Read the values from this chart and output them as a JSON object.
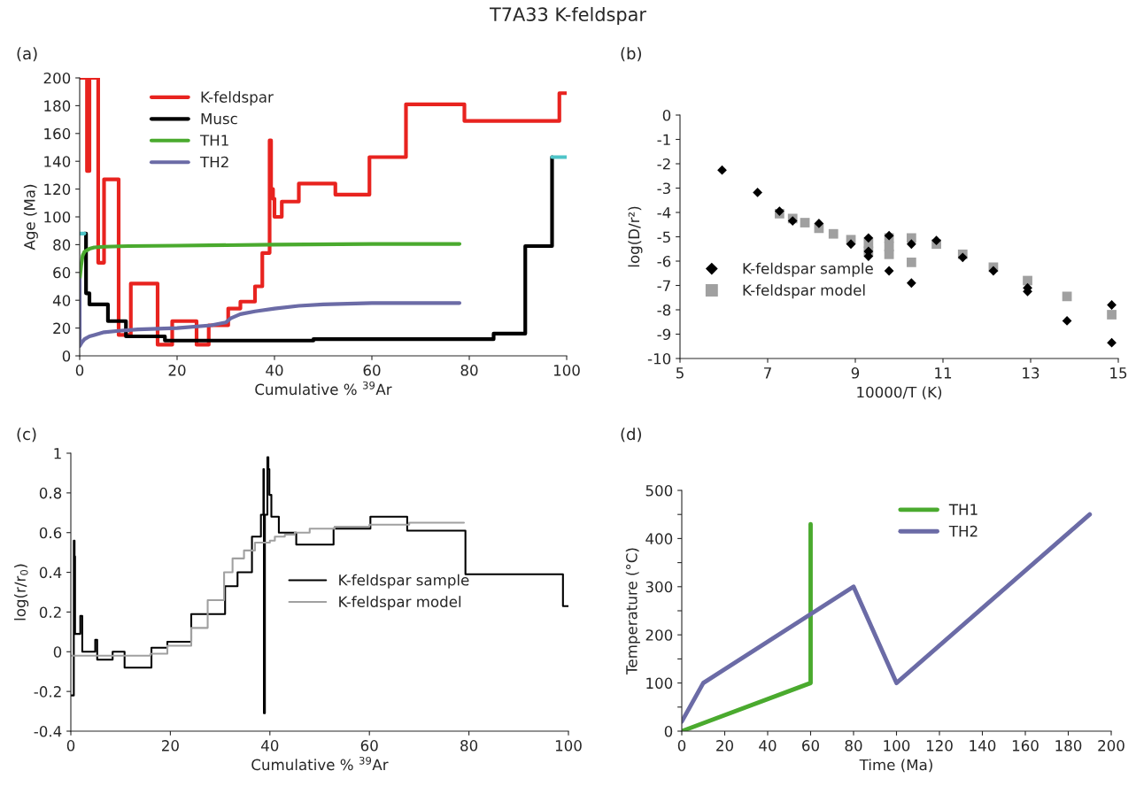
{
  "chart_data": [
    {
      "type": "step",
      "title": "T7A33 K-feldspar",
      "annotations": [
        "(a)"
      ],
      "xlabel": "Cumulative % $^{39}$Ar",
      "ylabel": "Age (Ma)",
      "xlim": [
        0,
        100
      ],
      "xticks": [
        0,
        20,
        40,
        60,
        80,
        100
      ],
      "ylim": [
        0,
        200
      ],
      "yticks": [
        0,
        20,
        40,
        60,
        80,
        100,
        120,
        140,
        160,
        180,
        200
      ],
      "legend": "top left",
      "grid": false,
      "series": [
        {
          "name": "K-feldspar",
          "color": "#e8231f",
          "x": [
            0,
            1.5,
            2.0,
            3.8,
            5.0,
            8.0,
            10.5,
            16,
            19,
            24,
            26.5,
            30.5,
            33,
            36,
            37.5,
            39,
            39.3,
            39.7,
            40,
            41.5,
            45,
            52.5,
            59.5,
            67,
            79,
            98.5,
            100
          ],
          "values": [
            200,
            133,
            200,
            67,
            127,
            15,
            52,
            8,
            25,
            8,
            22,
            34,
            39,
            50,
            74,
            155,
            120,
            113,
            100,
            111,
            124,
            116,
            143,
            181,
            169,
            189,
            189
          ]
        },
        {
          "name": "Musc",
          "color": "#000000",
          "x": [
            1.0,
            1.3,
            2.0,
            5.8,
            9.5,
            17.5,
            48,
            85,
            91.5,
            97
          ],
          "values": [
            88,
            45,
            37,
            25,
            14,
            11,
            12,
            16,
            79,
            143
          ]
        },
        {
          "name": "TH1",
          "color": "#4aaa2e",
          "type": "line",
          "x": [
            0,
            0.3,
            0.6,
            1,
            2,
            3,
            5,
            10,
            20,
            40,
            60,
            78
          ],
          "values": [
            55,
            65,
            72,
            75,
            77,
            78,
            78.5,
            79,
            79.3,
            80,
            80.5,
            80.5
          ]
        },
        {
          "name": "TH2",
          "color": "#6b6ba6",
          "type": "line",
          "x": [
            0,
            0,
            0.5,
            1,
            2,
            3,
            5,
            8,
            12,
            20,
            27,
            30,
            31,
            33,
            36,
            40,
            45,
            50,
            60,
            78
          ],
          "values": [
            55,
            7,
            10,
            12,
            14,
            15,
            17,
            18,
            19,
            20,
            22,
            24,
            27,
            30,
            32,
            34,
            36,
            37,
            38,
            38
          ]
        },
        {
          "color": "#4ec4c8",
          "type": "line",
          "x": [
            0,
            1
          ],
          "values": [
            88,
            88
          ]
        },
        {
          "color": "#4ec4c8",
          "type": "line",
          "x": [
            97,
            100
          ],
          "values": [
            143,
            143
          ]
        }
      ]
    },
    {
      "type": "scatter",
      "annotations": [
        "(b)"
      ],
      "xlabel": "10000/T (K)",
      "ylabel": "log(D/r²)",
      "xlim": [
        5,
        15
      ],
      "xticks": [
        5,
        7,
        9,
        11,
        13,
        15
      ],
      "ylim": [
        -10,
        0
      ],
      "yticks": [
        -10,
        -9,
        -8,
        -7,
        -6,
        -5,
        -4,
        -3,
        -2,
        -1,
        0
      ],
      "legend": "left",
      "grid": false,
      "series": [
        {
          "name": "K-feldspar sample",
          "color": "#000000",
          "marker": "diamond",
          "x": [
            5.96,
            6.77,
            7.27,
            7.57,
            8.17,
            8.9,
            9.3,
            9.3,
            9.3,
            9.77,
            9.77,
            10.28,
            10.28,
            10.85,
            11.45,
            12.15,
            12.93,
            12.93,
            13.83,
            14.85,
            14.85
          ],
          "values": [
            -2.26,
            -3.18,
            -3.95,
            -4.35,
            -4.45,
            -5.3,
            -5.05,
            -5.6,
            -5.8,
            -4.95,
            -6.4,
            -5.3,
            -6.9,
            -5.15,
            -5.85,
            -6.4,
            -7.1,
            -7.25,
            -8.45,
            -7.8,
            -9.35
          ]
        },
        {
          "name": "K-feldspar model",
          "color": "#a0a0a0",
          "marker": "square",
          "x": [
            7.27,
            7.57,
            7.85,
            8.17,
            8.5,
            8.9,
            9.3,
            9.3,
            9.77,
            9.77,
            9.77,
            10.28,
            10.28,
            10.85,
            11.45,
            12.15,
            12.93,
            13.83,
            14.85
          ],
          "values": [
            -4.05,
            -4.25,
            -4.42,
            -4.65,
            -4.88,
            -5.12,
            -5.25,
            -5.6,
            -5.05,
            -5.4,
            -5.72,
            -5.05,
            -6.05,
            -5.3,
            -5.72,
            -6.25,
            -6.8,
            -7.45,
            -8.2
          ]
        }
      ]
    },
    {
      "type": "step",
      "annotations": [
        "(c)"
      ],
      "xlabel": "Cumulative % $^{39}$Ar",
      "ylabel": "log(r/r$_{0}$)",
      "xlim": [
        0,
        100
      ],
      "xticks": [
        0,
        20,
        40,
        60,
        80,
        100
      ],
      "ylim": [
        -0.4,
        1
      ],
      "yticks": [
        -0.4,
        -0.2,
        0,
        0.2,
        0.4,
        0.6,
        0.8,
        1
      ],
      "legend": "right",
      "grid": false,
      "series": [
        {
          "name": "K-feldspar sample",
          "color": "#000000",
          "x": [
            0,
            0.6,
            0.75,
            0.85,
            1.9,
            2.3,
            4.9,
            5.3,
            8.4,
            10.8,
            16.2,
            19.4,
            24.2,
            31,
            33.5,
            36.4,
            38.2,
            38.7,
            38.8,
            39.0,
            39.5,
            39.7,
            39.9,
            40.3,
            41.8,
            45.3,
            52.8,
            60.2,
            67.6,
            79.3,
            98.9,
            100
          ],
          "values": [
            -0.22,
            0.56,
            0.48,
            0.09,
            0.18,
            0.0,
            0.06,
            -0.04,
            0.0,
            -0.08,
            0.02,
            0.05,
            0.19,
            0.33,
            0.4,
            0.58,
            0.69,
            0.92,
            -0.31,
            0.69,
            0.98,
            0.92,
            0.79,
            0.68,
            0.6,
            0.54,
            0.62,
            0.68,
            0.61,
            0.39,
            0.23,
            0.23
          ]
        },
        {
          "name": "K-feldspar model",
          "color": "#a0a0a0",
          "x": [
            0,
            16,
            19.4,
            24.2,
            27.5,
            30.8,
            32.5,
            34.8,
            37,
            40,
            41,
            43,
            45,
            48,
            53,
            60,
            68,
            79
          ],
          "values": [
            -0.02,
            -0.01,
            0.03,
            0.12,
            0.26,
            0.4,
            0.47,
            0.51,
            0.55,
            0.56,
            0.58,
            0.59,
            0.6,
            0.62,
            0.63,
            0.64,
            0.65,
            0.65
          ]
        }
      ]
    },
    {
      "type": "line",
      "annotations": [
        "(d)"
      ],
      "xlabel": "Time (Ma)",
      "ylabel": "Temperature (°C)",
      "xlim": [
        0,
        200
      ],
      "xticks": [
        0,
        20,
        40,
        60,
        80,
        100,
        120,
        140,
        160,
        180,
        200
      ],
      "ylim": [
        0,
        500
      ],
      "yticks": [
        0,
        {
          "value": 50,
          "label": null
        },
        100,
        {
          "value": 150,
          "label": null
        },
        200,
        {
          "value": 250,
          "label": null
        },
        300,
        {
          "value": 350,
          "label": null
        },
        400,
        {
          "value": 450,
          "label": null
        },
        500
      ],
      "legend": "top",
      "grid": false,
      "series": [
        {
          "name": "TH1",
          "color": "#4aaa2e",
          "x": [
            0,
            60,
            60
          ],
          "values": [
            0,
            100,
            430
          ]
        },
        {
          "name": "TH2",
          "color": "#6b6ba6",
          "x": [
            0,
            10,
            80,
            100,
            190
          ],
          "values": [
            20,
            100,
            300,
            100,
            450
          ]
        }
      ]
    }
  ]
}
